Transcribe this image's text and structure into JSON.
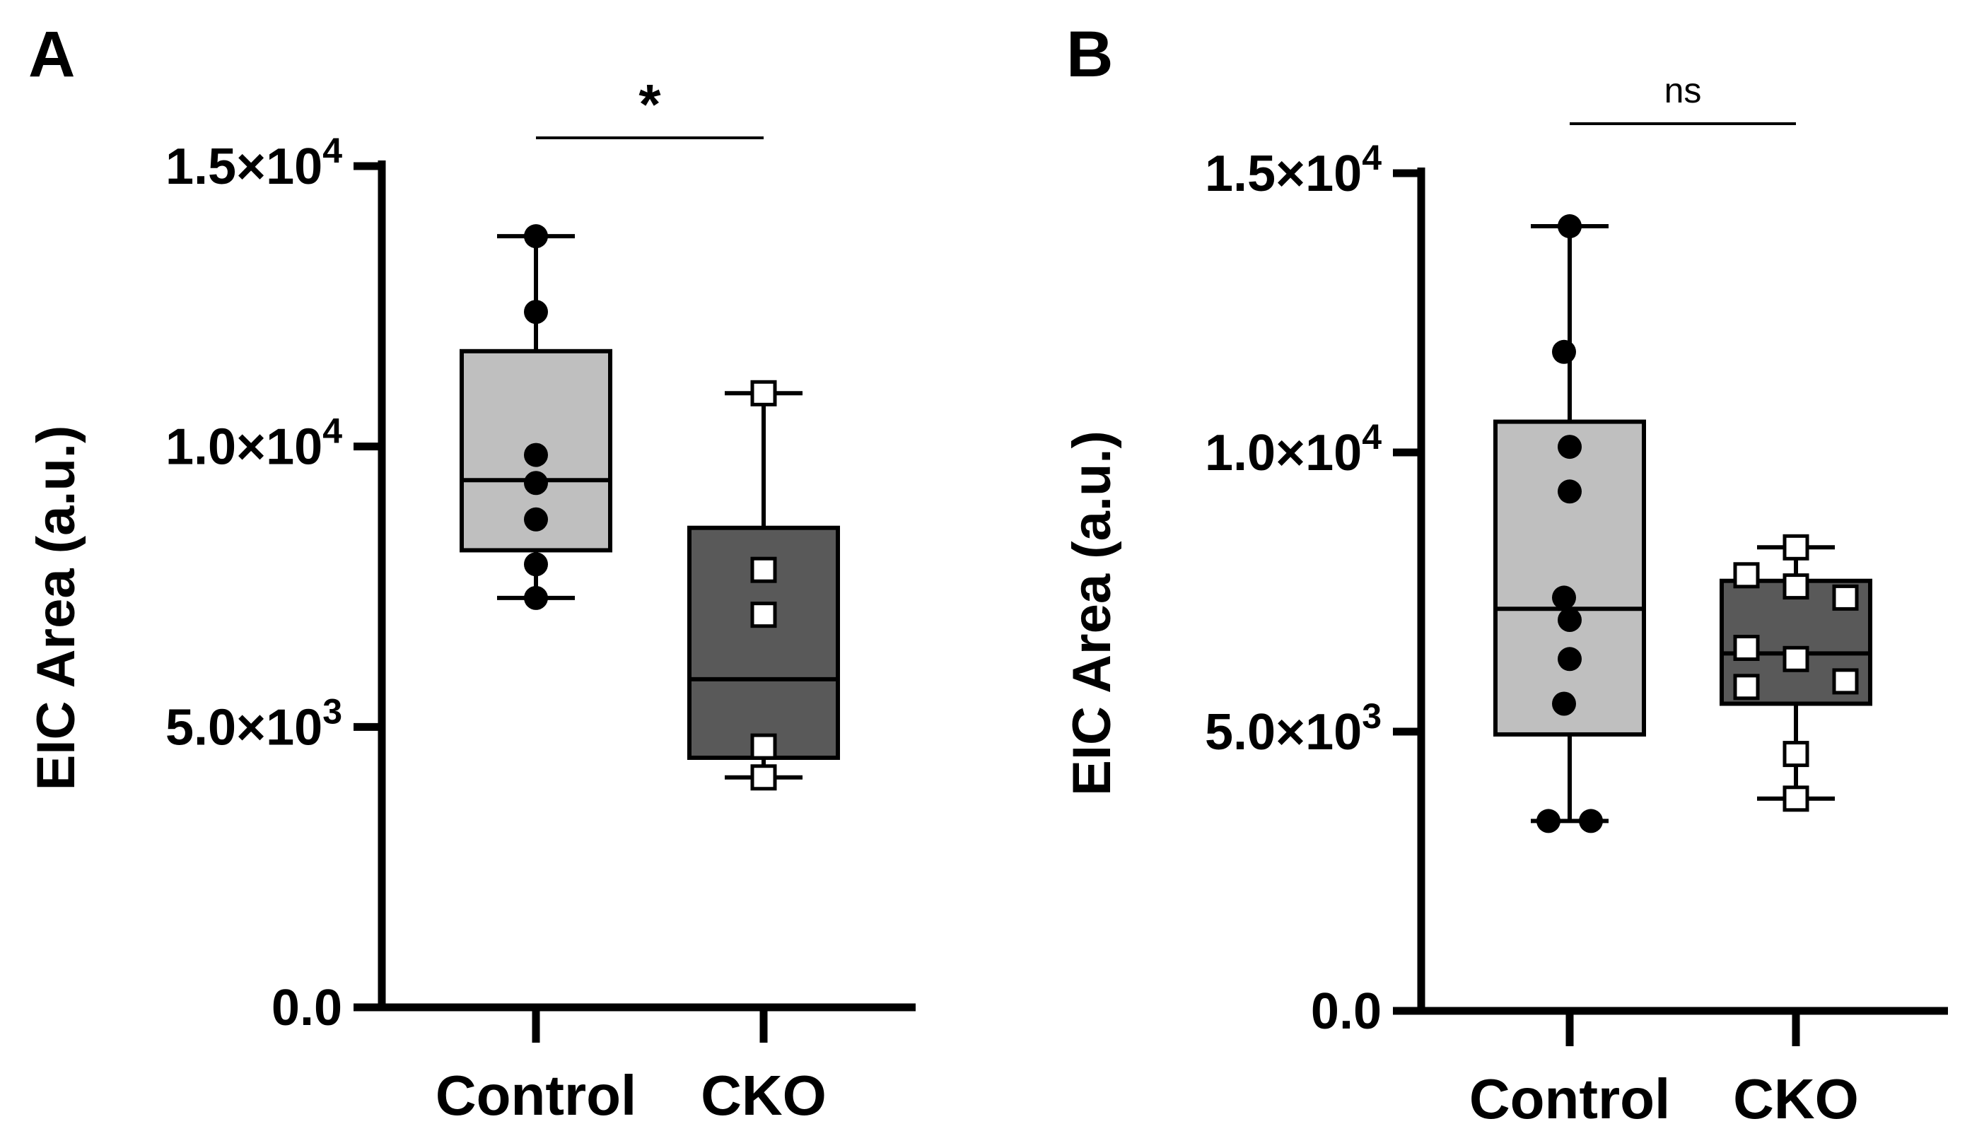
{
  "chart_data": [
    {
      "panel_label": "A",
      "type": "box",
      "ylabel": "EIC Area (a.u.)",
      "yticks": [
        {
          "value": 0,
          "label": "0.0",
          "exp": ""
        },
        {
          "value": 5000,
          "label": "5.0×10",
          "exp": "3"
        },
        {
          "value": 10000,
          "label": "1.0×10",
          "exp": "4"
        },
        {
          "value": 15000,
          "label": "1.5×10",
          "exp": "4"
        }
      ],
      "ylim": [
        0,
        15000
      ],
      "categories": [
        "Control",
        "CKO"
      ],
      "significance": "*",
      "groups": [
        {
          "name": "Control",
          "fill": "#bfbfbf",
          "marker": "circle",
          "min": 7300,
          "q1": 8150,
          "median": 9400,
          "q3": 11700,
          "max": 13750,
          "points": [
            13750,
            12400,
            9850,
            9350,
            8700,
            7900,
            7300
          ]
        },
        {
          "name": "CKO",
          "fill": "#595959",
          "marker": "square",
          "min": 4100,
          "q1": 4450,
          "median": 5850,
          "q3": 8550,
          "max": 10950,
          "points": [
            10950,
            7800,
            7000,
            4650,
            4100
          ]
        }
      ]
    },
    {
      "panel_label": "B",
      "type": "box",
      "ylabel": "EIC Area (a.u.)",
      "yticks": [
        {
          "value": 0,
          "label": "0.0",
          "exp": ""
        },
        {
          "value": 5000,
          "label": "5.0×10",
          "exp": "3"
        },
        {
          "value": 10000,
          "label": "1.0×10",
          "exp": "4"
        },
        {
          "value": 15000,
          "label": "1.5×10",
          "exp": "4"
        }
      ],
      "ylim": [
        0,
        15000
      ],
      "categories": [
        "Control",
        "CKO"
      ],
      "significance": "ns",
      "groups": [
        {
          "name": "Control",
          "fill": "#bfbfbf",
          "marker": "circle",
          "min": 3400,
          "q1": 4950,
          "median": 7200,
          "q3": 10550,
          "max": 14050,
          "points": [
            14050,
            11800,
            10100,
            9300,
            7400,
            7000,
            6300,
            5500,
            3400,
            3400
          ]
        },
        {
          "name": "CKO",
          "fill": "#595959",
          "marker": "square",
          "min": 3800,
          "q1": 5500,
          "median": 6400,
          "q3": 7700,
          "max": 8300,
          "points": [
            8300,
            7800,
            7600,
            7400,
            6500,
            6300,
            5900,
            5800,
            4600,
            3800
          ]
        }
      ]
    }
  ]
}
